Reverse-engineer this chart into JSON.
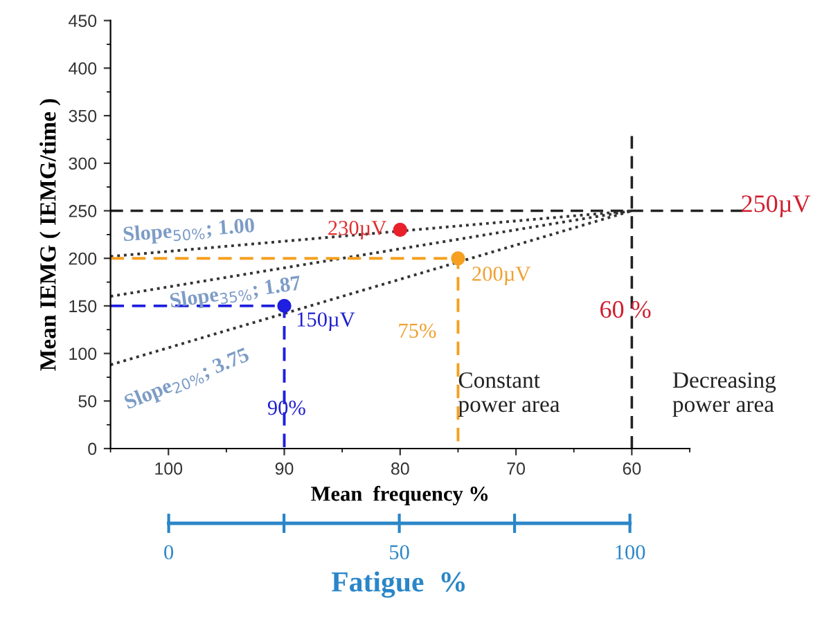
{
  "chart_data": {
    "type": "line",
    "xlabel": "Mean  frequency %",
    "ylabel": "Mean IEMG ( IEMG/time )",
    "xlim": [
      105,
      55
    ],
    "xticks": [
      100,
      90,
      80,
      70,
      60
    ],
    "ylim": [
      0,
      450
    ],
    "yticks": [
      0,
      50,
      100,
      150,
      200,
      250,
      300,
      350,
      400,
      450
    ],
    "x2lim": [
      0,
      100
    ],
    "x2ticks": [
      0,
      {
        "value": 25,
        "label": null
      },
      50,
      {
        "value": 75,
        "label": null
      },
      100
    ],
    "x2label": "Fatigue  %",
    "grid": false,
    "series": [
      {
        "x": [
          105,
          60
        ],
        "values": [
          202,
          250
        ],
        "color": "#333333",
        "line_style": "dotted",
        "marker": "none"
      },
      {
        "x": [
          105,
          60
        ],
        "values": [
          160,
          250
        ],
        "color": "#333333",
        "line_style": "dotted",
        "marker": "none"
      },
      {
        "x": [
          105,
          60
        ],
        "values": [
          88,
          250
        ],
        "color": "#333333",
        "line_style": "dotted",
        "marker": "none"
      },
      {
        "x": [
          105,
          90,
          90
        ],
        "values": [
          150,
          150,
          0
        ],
        "color": "#1f1fe0",
        "line_style": "dashed",
        "marker": "none"
      },
      {
        "x": [
          105,
          75,
          75
        ],
        "values": [
          200,
          200,
          0
        ],
        "color": "#f5a020",
        "line_style": "dashed",
        "marker": "none"
      },
      {
        "type": "scatter",
        "x": [
          90,
          75,
          80
        ],
        "values": [
          150,
          200,
          230
        ],
        "colors": [
          "#1f1fe0",
          "#f5a020",
          "#e8202a"
        ],
        "marker": "circle"
      }
    ],
    "ref_lines": [
      {
        "axis": "y",
        "value": 250,
        "color": "#222222",
        "line_style": "dashed"
      },
      {
        "axis": "x",
        "value": 60,
        "color": "#222222",
        "line_style": "dashed"
      }
    ],
    "annotations": [
      {
        "text": "230µV",
        "x": 80,
        "y": 230
      },
      {
        "text": "150µV",
        "x": 90,
        "y": 150
      },
      {
        "text": "200µV",
        "x": 75,
        "y": 200
      },
      "Slope$_{50%}$; 1.00",
      "Slope$_{35%}$; 1.87",
      "Slope$_{20%}$; 3.75",
      "90%",
      "75%",
      "60 %",
      "250µV",
      "Constant\npower area",
      "Decreasing\npower area"
    ]
  }
}
